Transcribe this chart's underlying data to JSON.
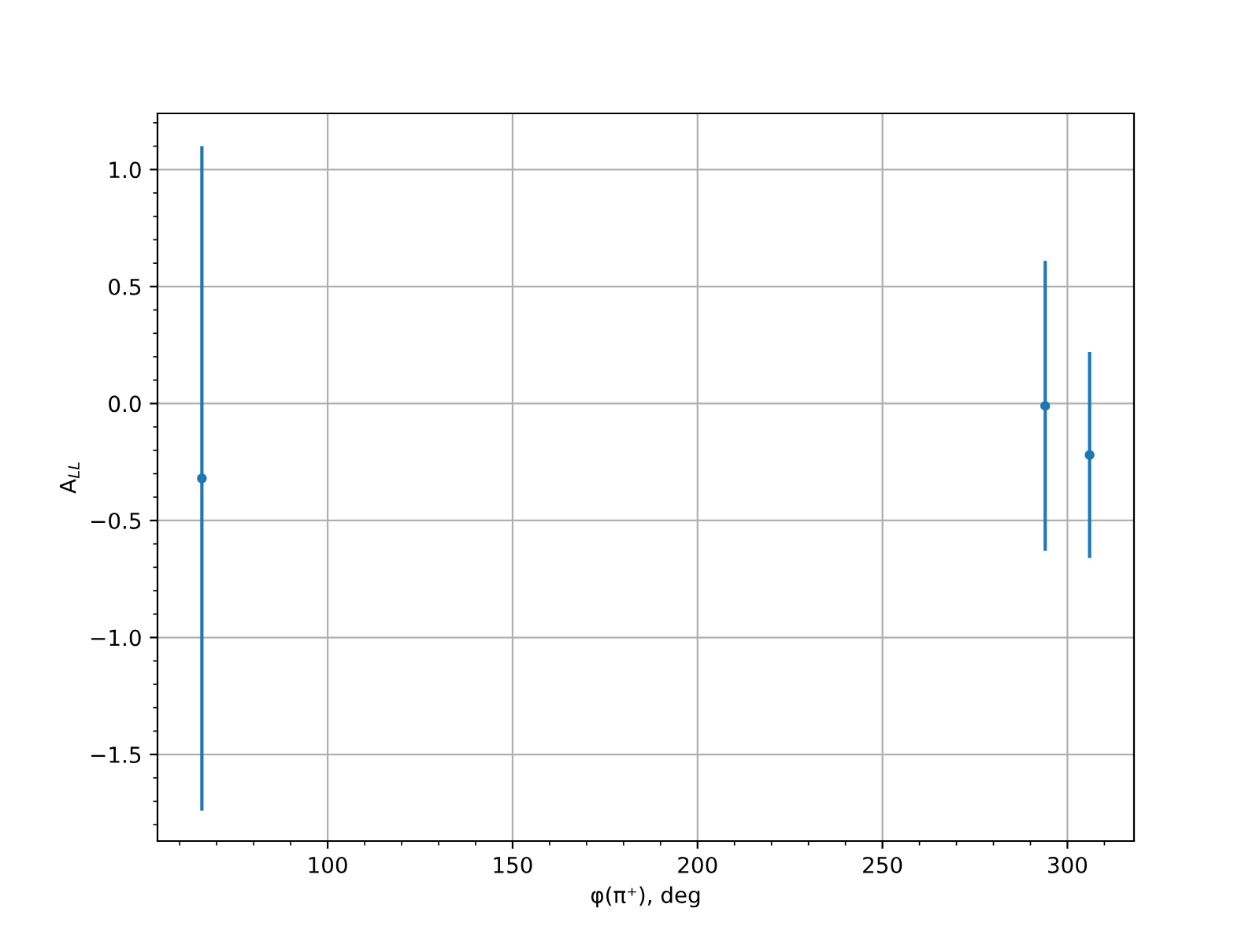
{
  "chart_data": {
    "type": "scatter",
    "xlabel": "φ(π⁺), deg",
    "ylabel": "A$_{LL}$",
    "x": [
      66,
      294,
      306
    ],
    "series": [
      {
        "color": "#1f77b4",
        "values": [
          -0.32,
          -0.01,
          -0.22
        ],
        "errors": [
          1.42,
          0.62,
          0.44
        ]
      }
    ],
    "marker": "circle",
    "grid": true,
    "xlim": [
      54,
      318
    ],
    "xticks": [
      100,
      150,
      200,
      250,
      300
    ],
    "ylim": [
      -1.87,
      1.24
    ],
    "yticks": [
      {
        "value": -1.5,
        "label": "−1.5"
      },
      {
        "value": -1.0,
        "label": "−1.0"
      },
      {
        "value": -0.5,
        "label": "−0.5"
      },
      {
        "value": 0,
        "label": "0.0"
      },
      0.5,
      {
        "value": 1,
        "label": "1.0"
      }
    ]
  }
}
